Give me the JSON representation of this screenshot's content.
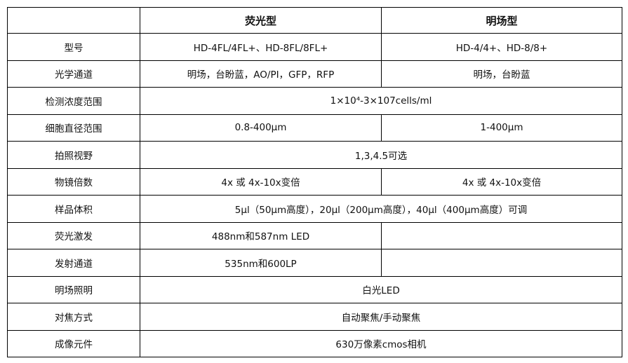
{
  "header": {
    "blank": "",
    "fluorescent": "荧光型",
    "brightfield": "明场型"
  },
  "rows": [
    {
      "label": "型号",
      "fl": "HD-4FL/4FL+、HD-8FL/8FL+",
      "bf": "HD-4/4+、HD-8/8+"
    },
    {
      "label": "光学通道",
      "fl": "明场，台盼蓝，AO/PI，GFP，RFP",
      "bf": "明场，台盼蓝"
    },
    {
      "label": "检测浓度范围",
      "both": "1×10⁴-3×107cells/ml"
    },
    {
      "label": "细胞直径范围",
      "fl": "0.8-400μm",
      "bf": "1-400μm"
    },
    {
      "label": "拍照视野",
      "both": "1,3,4.5可选"
    },
    {
      "label": "物镜倍数",
      "fl": "4x 或 4x-10x变倍",
      "bf": "4x 或 4x-10x变倍"
    },
    {
      "label": "样品体积",
      "both": "5μl（50μm高度），20μl（200μm高度），40μl（400μm高度）可调"
    },
    {
      "label": "荧光激发",
      "fl": "488nm和587nm LED",
      "bf": ""
    },
    {
      "label": "发射通道",
      "fl": "535nm和600LP",
      "bf": ""
    },
    {
      "label": "明场照明",
      "both": "白光LED"
    },
    {
      "label": "对焦方式",
      "both": "自动聚焦/手动聚焦"
    },
    {
      "label": "成像元件",
      "both": "630万像素cmos相机"
    }
  ]
}
